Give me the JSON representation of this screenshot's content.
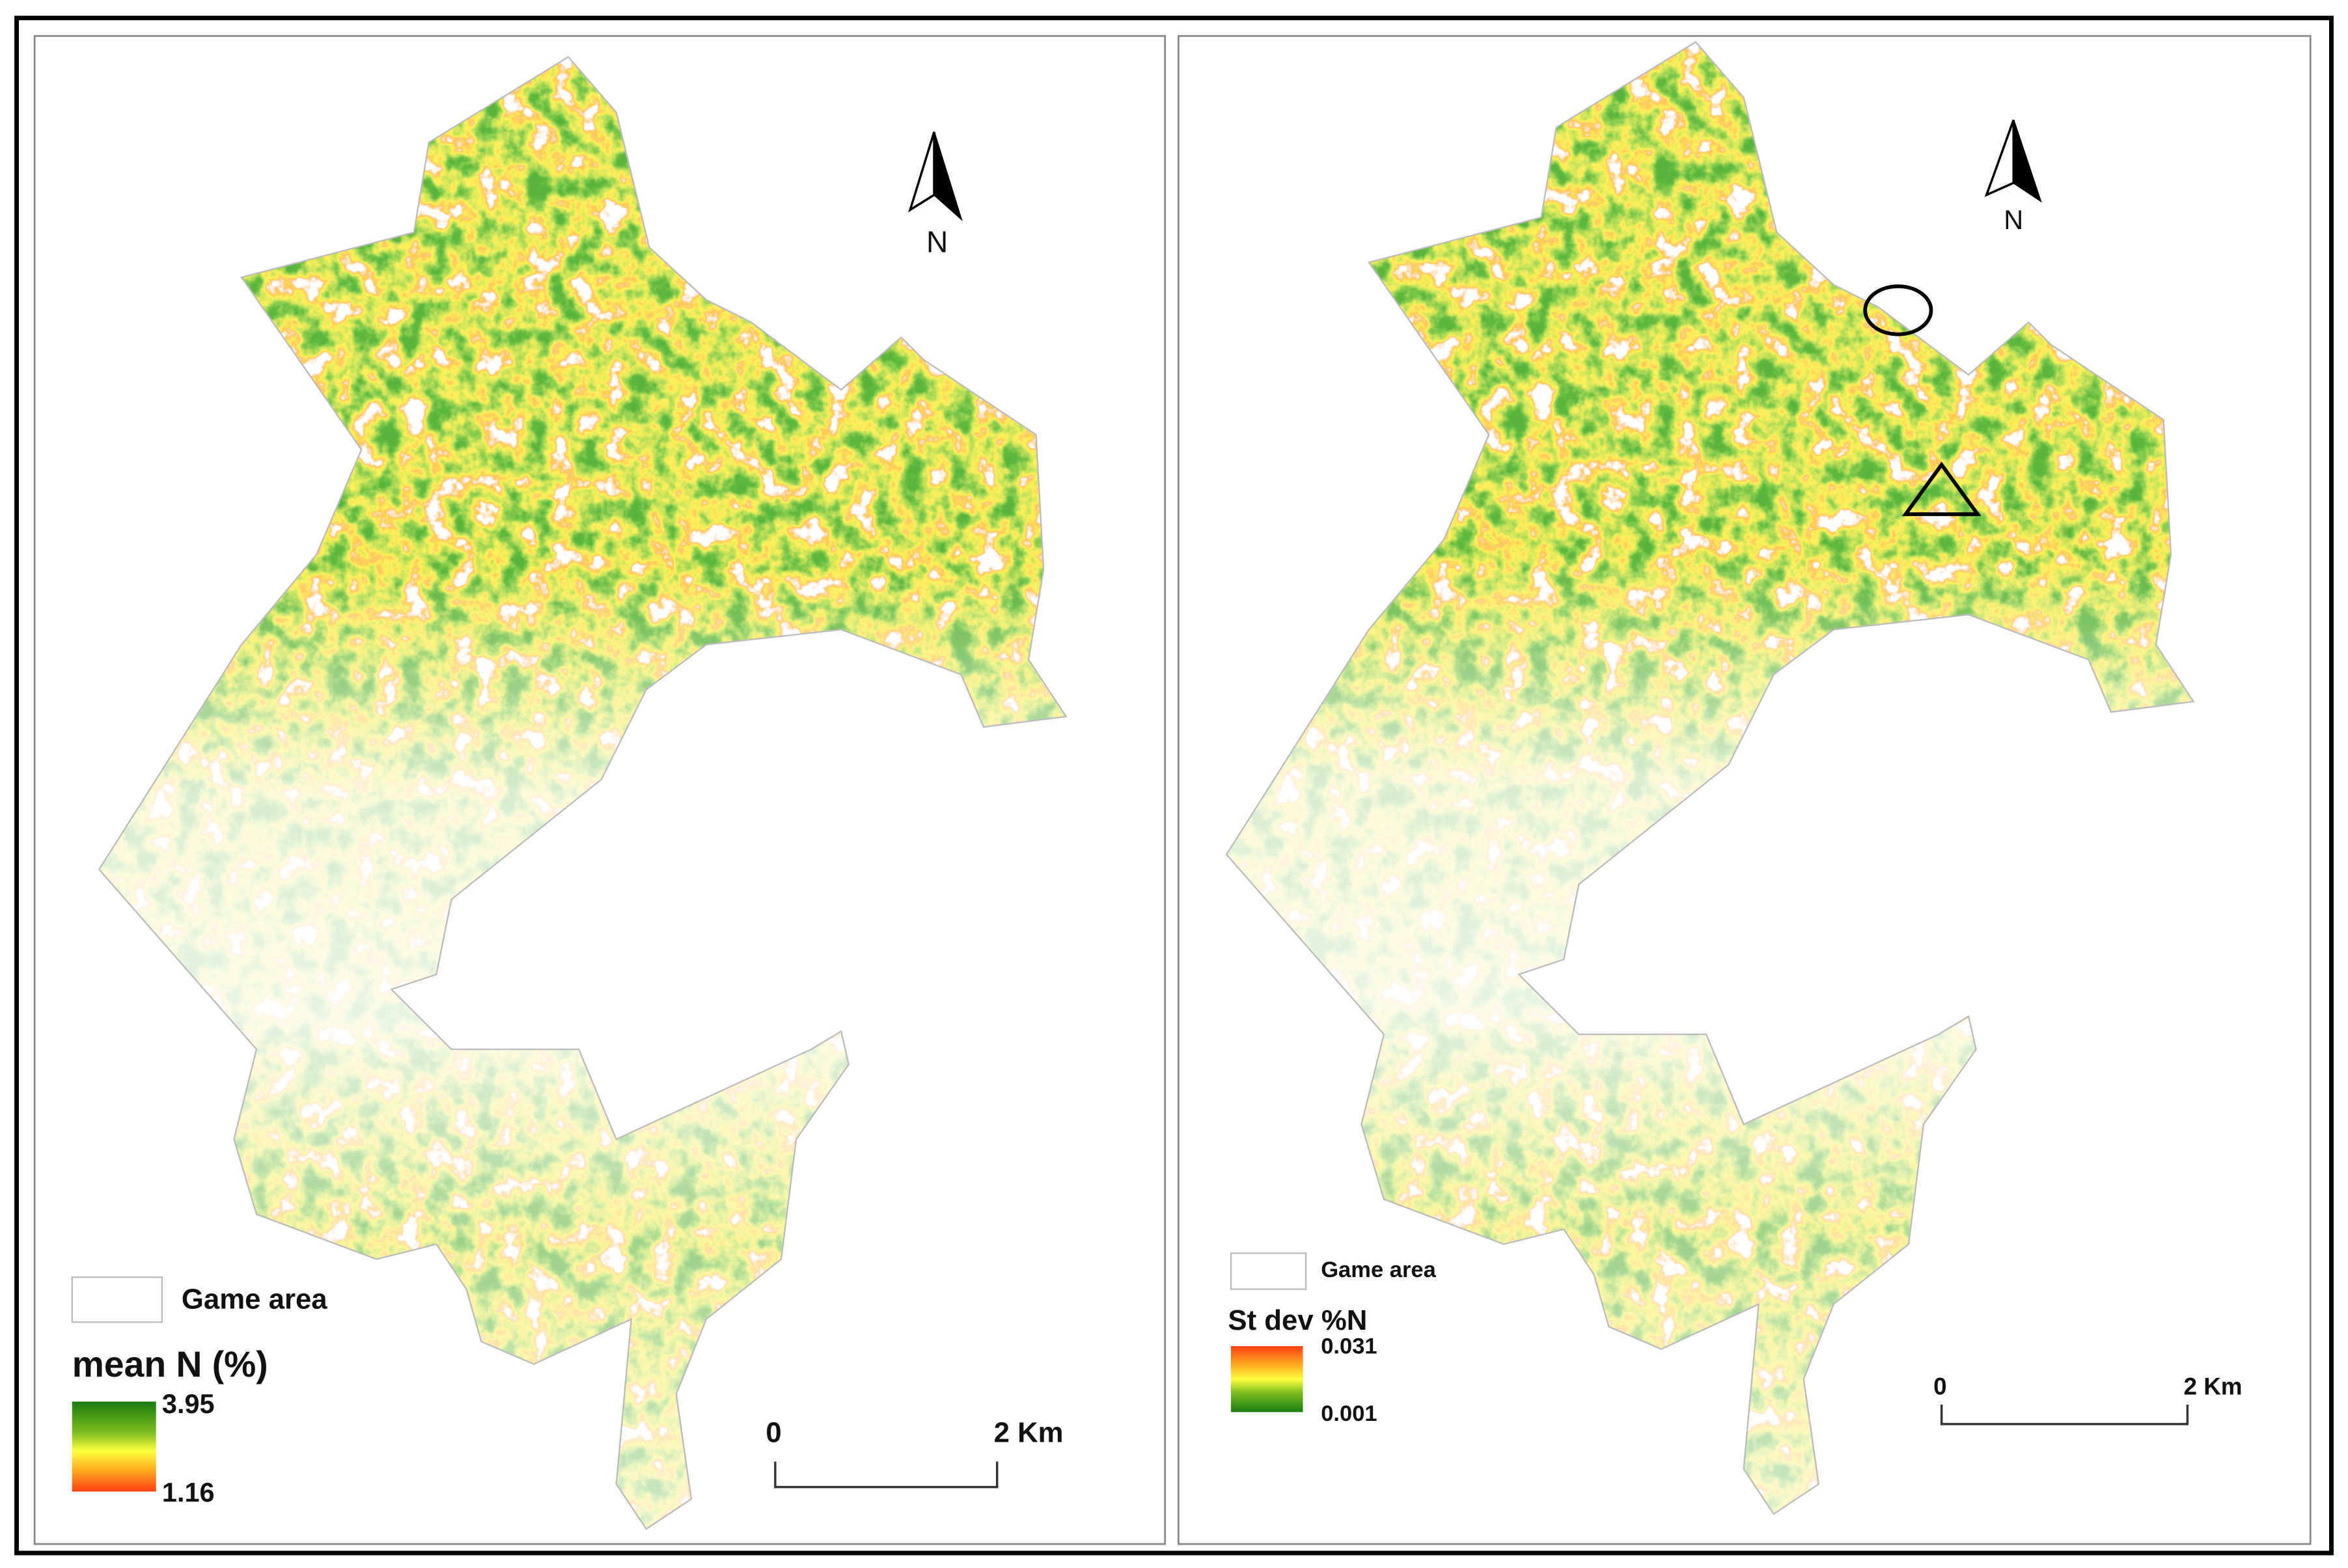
{
  "panels": [
    {
      "north_label": "N",
      "legend": {
        "game_area": "Game area",
        "title": "mean N (%)",
        "max": 3.95,
        "min": 1.16
      },
      "scale_bar": {
        "start": "0",
        "end": "2 Km"
      }
    },
    {
      "north_label": "N",
      "legend": {
        "game_area": "Game area",
        "title": "St dev %N",
        "max": 0.031,
        "min": 0.001
      },
      "scale_bar": {
        "start": "0",
        "end": "2 Km"
      }
    }
  ]
}
